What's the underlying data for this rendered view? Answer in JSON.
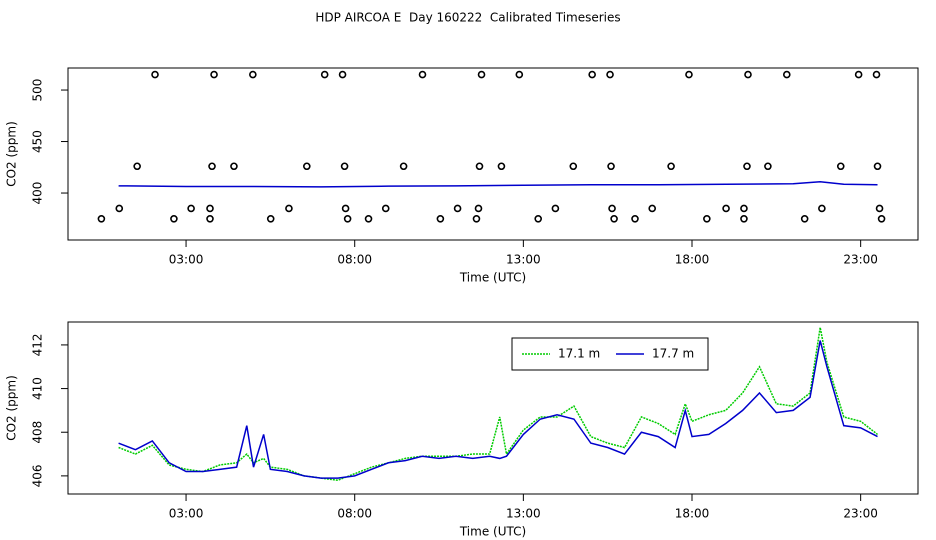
{
  "title": "HDP AIRCOA E  Day 160222  Calibrated Timeseries",
  "chart_data": [
    {
      "type": "line",
      "xlabel": "Time (UTC)",
      "ylabel": "CO2 (ppm)",
      "xlim": [
        -0.5,
        24.7
      ],
      "ylim": [
        354.4,
        521.4
      ],
      "xticks": [
        {
          "value": 3,
          "label": "03:00"
        },
        {
          "value": 8,
          "label": "08:00"
        },
        {
          "value": 13,
          "label": "13:00"
        },
        {
          "value": 18,
          "label": "18:00"
        },
        {
          "value": 23,
          "label": "23:00"
        }
      ],
      "yticks": [
        400,
        450,
        500
      ],
      "series": [
        {
          "style": "line",
          "color": "#0000cc",
          "x": [
            1,
            3,
            5,
            7,
            9,
            11,
            13,
            15,
            17,
            19,
            21,
            21.8,
            22.5,
            23.5
          ],
          "values": [
            407,
            406.3,
            406.4,
            406,
            406.7,
            407,
            407.5,
            408,
            408,
            408.5,
            409,
            411,
            408.5,
            408
          ]
        },
        {
          "style": "points",
          "color": "#000000",
          "x": [
            2.08,
            3.83,
            4.98,
            7.11,
            7.64,
            10.01,
            11.76,
            12.88,
            15.04,
            15.57,
            17.91,
            19.66,
            20.81,
            22.94,
            23.47,
            1.55,
            3.77,
            4.42,
            6.58,
            7.7,
            9.45,
            11.7,
            12.35,
            14.48,
            15.6,
            17.38,
            19.63,
            20.25,
            22.41,
            23.5,
            1.02,
            3.15,
            3.71,
            6.05,
            7.73,
            8.92,
            11.05,
            11.67,
            13.95,
            15.63,
            16.82,
            19.01,
            19.54,
            21.85,
            23.56,
            0.49,
            2.64,
            3.71,
            5.51,
            7.79,
            8.41,
            10.54,
            11.61,
            13.44,
            15.69,
            16.31,
            18.44,
            19.54,
            21.34,
            23.62
          ],
          "values": [
            515,
            515,
            515,
            515,
            515,
            515,
            515,
            515,
            515,
            515,
            515,
            515,
            515,
            515,
            515,
            426,
            426,
            426,
            426,
            426,
            426,
            426,
            426,
            426,
            426,
            426,
            426,
            426,
            426,
            426,
            385,
            385,
            385,
            385,
            385,
            385,
            385,
            385,
            385,
            385,
            385,
            385,
            385,
            385,
            385,
            375,
            375,
            375,
            375,
            375,
            375,
            375,
            375,
            375,
            375,
            375,
            375,
            375,
            375,
            375
          ]
        }
      ]
    },
    {
      "type": "line",
      "xlabel": "Time (UTC)",
      "ylabel": "CO2 (ppm)",
      "xlim": [
        -0.5,
        24.7
      ],
      "ylim": [
        405.17,
        413.05
      ],
      "xticks": [
        {
          "value": 3,
          "label": "03:00"
        },
        {
          "value": 8,
          "label": "08:00"
        },
        {
          "value": 13,
          "label": "13:00"
        },
        {
          "value": 18,
          "label": "18:00"
        },
        {
          "value": 23,
          "label": "23:00"
        }
      ],
      "yticks": [
        406,
        408,
        410,
        412
      ],
      "legend": "top",
      "series": [
        {
          "name": "17.1 m",
          "style": "dotted",
          "color": "#00cc00",
          "x": [
            1,
            1.5,
            2,
            2.5,
            3,
            3.5,
            4,
            4.5,
            4.8,
            5,
            5.3,
            5.5,
            6,
            6.5,
            7,
            7.5,
            8,
            8.5,
            9,
            9.5,
            10,
            10.5,
            11,
            11.5,
            12,
            12.3,
            12.5,
            13,
            13.5,
            14,
            14.5,
            15,
            15.5,
            16,
            16.5,
            17,
            17.5,
            17.8,
            18,
            18.5,
            19,
            19.5,
            20,
            20.5,
            21,
            21.5,
            21.8,
            22,
            22.5,
            23,
            23.5
          ],
          "values": [
            407.3,
            407,
            407.4,
            406.5,
            406.3,
            406.2,
            406.5,
            406.6,
            407,
            406.6,
            406.8,
            406.4,
            406.3,
            406,
            405.9,
            405.8,
            406.1,
            406.4,
            406.6,
            406.8,
            406.9,
            406.9,
            406.9,
            407,
            407,
            408.7,
            407,
            408.1,
            408.7,
            408.7,
            409.2,
            407.8,
            407.5,
            407.3,
            408.7,
            408.4,
            407.9,
            409.3,
            408.5,
            408.8,
            409,
            409.8,
            411,
            409.3,
            409.2,
            409.8,
            412.8,
            411.2,
            408.7,
            408.5,
            407.9
          ]
        },
        {
          "name": "17.7 m",
          "style": "solid",
          "color": "#0000cc",
          "x": [
            1,
            1.5,
            2,
            2.5,
            3,
            3.5,
            4,
            4.5,
            4.8,
            5,
            5.3,
            5.5,
            6,
            6.5,
            7,
            7.5,
            8,
            8.5,
            9,
            9.5,
            10,
            10.5,
            11,
            11.5,
            12,
            12.3,
            12.5,
            13,
            13.5,
            14,
            14.5,
            15,
            15.5,
            16,
            16.5,
            17,
            17.5,
            17.8,
            18,
            18.5,
            19,
            19.5,
            20,
            20.5,
            21,
            21.5,
            21.8,
            22,
            22.5,
            23,
            23.5
          ],
          "values": [
            407.5,
            407.2,
            407.6,
            406.6,
            406.2,
            406.2,
            406.3,
            406.4,
            408.3,
            406.4,
            407.9,
            406.3,
            406.2,
            406,
            405.9,
            405.9,
            406,
            406.3,
            406.6,
            406.7,
            406.9,
            406.8,
            406.9,
            406.8,
            406.9,
            406.8,
            406.9,
            407.9,
            408.6,
            408.8,
            408.6,
            407.5,
            407.3,
            407,
            408,
            407.8,
            407.3,
            409,
            407.8,
            407.9,
            408.4,
            409,
            409.8,
            408.9,
            409,
            409.6,
            412.2,
            411,
            408.3,
            408.2,
            407.8
          ]
        }
      ]
    }
  ]
}
